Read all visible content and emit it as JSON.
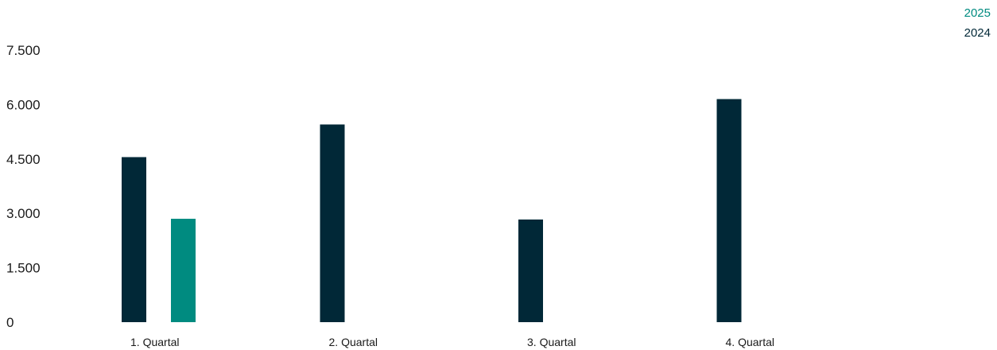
{
  "chart_data": {
    "type": "bar",
    "categories": [
      "1. Quartal",
      "2. Quartal",
      "3. Quartal",
      "4. Quartal"
    ],
    "series": [
      {
        "name": "2024",
        "color": "#012837",
        "values": [
          4550,
          5450,
          2830,
          6150
        ]
      },
      {
        "name": "2025",
        "color": "#008b80",
        "values": [
          2850,
          null,
          null,
          null
        ]
      }
    ],
    "y_ticks": [
      0,
      1500,
      3000,
      4500,
      6000,
      7500
    ],
    "y_tick_labels": [
      "0",
      "1.500",
      "3.000",
      "4.500",
      "6.000",
      "7.500"
    ],
    "ylim": [
      0,
      7500
    ],
    "grid": false,
    "legend": {
      "position": "top-right",
      "entries": [
        {
          "label": "2025",
          "color": "#008b80"
        },
        {
          "label": "2024",
          "color": "#012837"
        }
      ]
    }
  }
}
